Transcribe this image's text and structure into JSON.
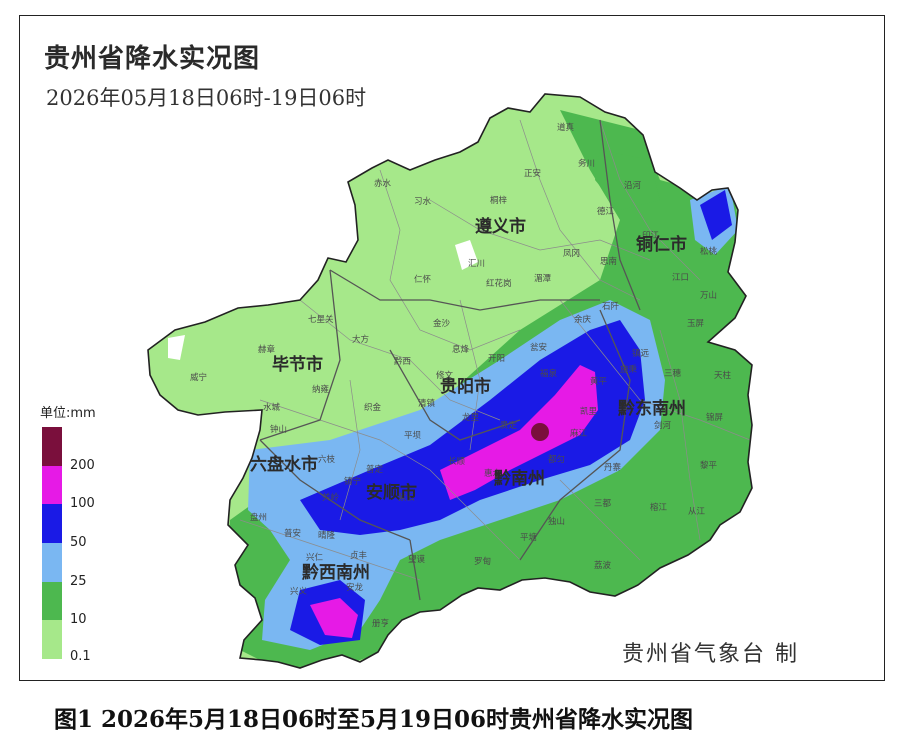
{
  "title": "贵州省降水实况图",
  "subtitle": "2026年05月18日06时-19日06时",
  "legend": {
    "unit": "单位:mm",
    "levels": [
      {
        "label": "0.1",
        "color": "#a6e88a"
      },
      {
        "label": "10",
        "color": "#4db84f"
      },
      {
        "label": "25",
        "color": "#7ab7f2"
      },
      {
        "label": "50",
        "color": "#1a1ae6"
      },
      {
        "label": "100",
        "color": "#e61ae6"
      },
      {
        "label": "200",
        "color": "#7a0f3c"
      }
    ]
  },
  "cities": [
    {
      "name": "遵义市"
    },
    {
      "name": "铜仁市"
    },
    {
      "name": "毕节市"
    },
    {
      "name": "贵阳市"
    },
    {
      "name": "黔东南州"
    },
    {
      "name": "六盘水市"
    },
    {
      "name": "安顺市"
    },
    {
      "name": "黔南州"
    },
    {
      "name": "黔西南州"
    }
  ],
  "counties": [
    "道真",
    "务川",
    "正安",
    "沿河",
    "赤水",
    "习水",
    "桐梓",
    "德江",
    "印江",
    "江口",
    "松桃",
    "仁怀",
    "汇川",
    "红花岗",
    "湄潭",
    "凤冈",
    "思南",
    "石阡",
    "玉屏",
    "万山",
    "七星关",
    "大方",
    "金沙",
    "黔西",
    "息烽",
    "开阳",
    "余庆",
    "瓮安",
    "镇远",
    "三穗",
    "天柱",
    "赫章",
    "威宁",
    "纳雍",
    "织金",
    "清镇",
    "修文",
    "福泉",
    "黄平",
    "施秉",
    "剑河",
    "锦屏",
    "钟山",
    "水城",
    "普定",
    "平坝",
    "龙里",
    "贵定",
    "麻江",
    "凯里",
    "台江",
    "黎平",
    "盘州",
    "六枝",
    "关岭",
    "镇宁",
    "紫云",
    "长顺",
    "惠水",
    "都匀",
    "丹寨",
    "榕江",
    "从江",
    "晴隆",
    "普安",
    "贞丰",
    "望谟",
    "罗甸",
    "平塘",
    "独山",
    "三都",
    "荔波",
    "兴仁",
    "安龙",
    "兴义",
    "册亨"
  ],
  "agency": "贵州省气象台 制",
  "caption": "图1  2026年5月18日06时至5月19日06时贵州省降水实况图"
}
